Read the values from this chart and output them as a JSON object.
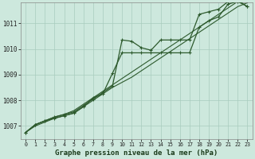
{
  "bg_color": "#cde8dd",
  "grid_color": "#a8ccbe",
  "line_color": "#2d5a2d",
  "marker_color": "#2d5a2d",
  "title": "Graphe pression niveau de la mer (hPa)",
  "xlim": [
    -0.5,
    23.5
  ],
  "ylim": [
    1006.5,
    1011.8
  ],
  "xticks": [
    0,
    1,
    2,
    3,
    4,
    5,
    6,
    7,
    8,
    9,
    10,
    11,
    12,
    13,
    14,
    15,
    16,
    17,
    18,
    19,
    20,
    21,
    22,
    23
  ],
  "yticks": [
    1007,
    1008,
    1009,
    1010,
    1011
  ],
  "series": [
    {
      "x": [
        0,
        1,
        2,
        3,
        4,
        5,
        6,
        7,
        8,
        9,
        10,
        11,
        12,
        13,
        14,
        15,
        16,
        17,
        18,
        19,
        20,
        21,
        22,
        23
      ],
      "y": [
        1006.75,
        1007.05,
        1007.2,
        1007.35,
        1007.45,
        1007.55,
        1007.8,
        1008.05,
        1008.3,
        1008.55,
        1010.35,
        1010.3,
        1010.05,
        1009.95,
        1010.35,
        1010.35,
        1010.35,
        1010.35,
        1011.35,
        1011.45,
        1011.55,
        1011.85,
        1011.9,
        1011.65
      ],
      "marker": true,
      "lw": 0.9
    },
    {
      "x": [
        0,
        1,
        2,
        3,
        4,
        5,
        6,
        7,
        8,
        9,
        10,
        11,
        12,
        13,
        14,
        15,
        16,
        17,
        18,
        19,
        20,
        21,
        22,
        23
      ],
      "y": [
        1006.75,
        1007.05,
        1007.2,
        1007.3,
        1007.4,
        1007.5,
        1007.75,
        1008.1,
        1008.25,
        1009.05,
        1009.85,
        1009.85,
        1009.85,
        1009.85,
        1009.85,
        1009.85,
        1009.85,
        1009.85,
        1010.85,
        1011.1,
        1011.25,
        1011.75,
        1011.85,
        1011.65
      ],
      "marker": true,
      "lw": 0.9
    },
    {
      "x": [
        0,
        1,
        2,
        3,
        4,
        5,
        6,
        7,
        8,
        9,
        10,
        11,
        12,
        13,
        14,
        15,
        16,
        17,
        18,
        19,
        20,
        21,
        22,
        23
      ],
      "y": [
        1006.75,
        1007.05,
        1007.2,
        1007.35,
        1007.45,
        1007.6,
        1007.85,
        1008.1,
        1008.35,
        1008.6,
        1008.85,
        1009.1,
        1009.35,
        1009.6,
        1009.85,
        1010.1,
        1010.35,
        1010.6,
        1010.85,
        1011.1,
        1011.35,
        1011.6,
        1011.85,
        1012.0
      ],
      "marker": false,
      "lw": 0.8
    },
    {
      "x": [
        0,
        1,
        2,
        3,
        4,
        5,
        6,
        7,
        8,
        9,
        10,
        11,
        12,
        13,
        14,
        15,
        16,
        17,
        18,
        19,
        20,
        21,
        22,
        23
      ],
      "y": [
        1006.75,
        1007.0,
        1007.15,
        1007.3,
        1007.4,
        1007.5,
        1007.75,
        1008.0,
        1008.25,
        1008.5,
        1008.7,
        1008.9,
        1009.15,
        1009.4,
        1009.65,
        1009.9,
        1010.15,
        1010.4,
        1010.65,
        1010.9,
        1011.15,
        1011.4,
        1011.65,
        1011.8
      ],
      "marker": false,
      "lw": 0.8
    }
  ]
}
